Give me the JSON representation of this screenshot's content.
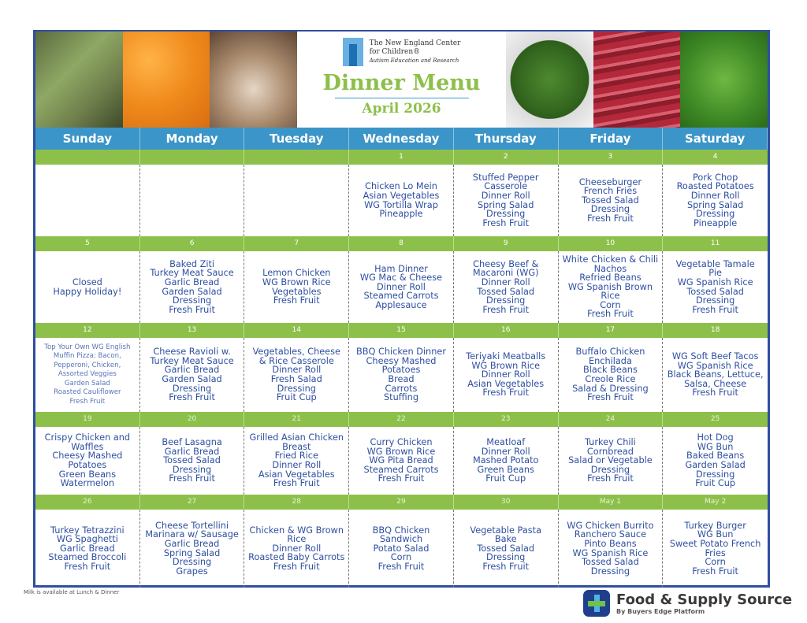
{
  "header": {
    "org_line1": "The New England Center",
    "org_line2": "for Children®",
    "org_tagline": "Autism Education and Research",
    "title": "Dinner Menu",
    "month": "April 2026"
  },
  "days": [
    "Sunday",
    "Monday",
    "Tuesday",
    "Wednesday",
    "Thursday",
    "Friday",
    "Saturday"
  ],
  "weeks": [
    [
      {
        "num": "",
        "items": []
      },
      {
        "num": "",
        "items": []
      },
      {
        "num": "",
        "items": []
      },
      {
        "num": "1",
        "items": [
          "Chicken Lo Mein",
          "Asian Vegetables",
          "WG Tortilla Wrap",
          "Pineapple"
        ]
      },
      {
        "num": "2",
        "items": [
          "Stuffed Pepper",
          "Casserole",
          "Dinner Roll",
          "Spring Salad",
          "Dressing",
          "Fresh Fruit"
        ]
      },
      {
        "num": "3",
        "items": [
          "Cheeseburger",
          "French Fries",
          "Tossed Salad",
          "Dressing",
          "Fresh Fruit"
        ]
      },
      {
        "num": "4",
        "items": [
          "Pork Chop",
          "Roasted Potatoes",
          "Dinner Roll",
          "Spring Salad",
          "Dressing",
          "Pineapple"
        ]
      }
    ],
    [
      {
        "num": "5",
        "items": [
          "Closed",
          "Happy Holiday!"
        ]
      },
      {
        "num": "6",
        "items": [
          "Baked Ziti",
          "Turkey Meat Sauce",
          "Garlic Bread",
          "Garden Salad",
          "Dressing",
          "Fresh Fruit"
        ]
      },
      {
        "num": "7",
        "items": [
          "Lemon Chicken",
          "WG Brown Rice",
          "Vegetables",
          "Fresh Fruit"
        ]
      },
      {
        "num": "8",
        "items": [
          "Ham Dinner",
          "WG Mac & Cheese",
          "Dinner Roll",
          "Steamed Carrots",
          "Applesauce"
        ]
      },
      {
        "num": "9",
        "items": [
          "Cheesy Beef &",
          "Macaroni (WG)",
          "Dinner Roll",
          "Tossed Salad",
          "Dressing",
          "Fresh Fruit"
        ]
      },
      {
        "num": "10",
        "items": [
          "White Chicken & Chili",
          "Nachos",
          "Refried Beans",
          "WG Spanish Brown",
          "Rice",
          "Corn",
          "Fresh Fruit"
        ]
      },
      {
        "num": "11",
        "items": [
          "Vegetable Tamale",
          "Pie",
          "WG Spanish Rice",
          "Tossed Salad",
          "Dressing",
          "Fresh Fruit"
        ]
      }
    ],
    [
      {
        "num": "12",
        "small": true,
        "items": [
          "Top Your Own WG English",
          "Muffin Pizza: Bacon,",
          "Pepperoni, Chicken,",
          "Assorted Veggies",
          "Garden Salad",
          "Roasted Cauliflower",
          "Fresh Fruit"
        ]
      },
      {
        "num": "13",
        "items": [
          "Cheese Ravioli w.",
          "Turkey Meat Sauce",
          "Garlic Bread",
          "Garden Salad",
          "Dressing",
          "Fresh Fruit"
        ]
      },
      {
        "num": "14",
        "items": [
          "Vegetables, Cheese",
          "& Rice Casserole",
          "Dinner Roll",
          "Fresh Salad",
          "Dressing",
          "Fruit Cup"
        ]
      },
      {
        "num": "15",
        "items": [
          "BBQ Chicken Dinner",
          "Cheesy Mashed",
          "Potatoes",
          "Bread",
          "Carrots",
          "Stuffing"
        ]
      },
      {
        "num": "16",
        "items": [
          "Teriyaki Meatballs",
          "WG Brown Rice",
          "Dinner Roll",
          "Asian Vegetables",
          "Fresh Fruit"
        ]
      },
      {
        "num": "17",
        "items": [
          "Buffalo Chicken",
          "Enchilada",
          "Black Beans",
          "Creole Rice",
          "Salad & Dressing",
          "Fresh Fruit"
        ]
      },
      {
        "num": "18",
        "items": [
          "WG Soft Beef Tacos",
          "WG Spanish Rice",
          "Black Beans, Lettuce,",
          "Salsa, Cheese",
          "Fresh Fruit"
        ]
      }
    ],
    [
      {
        "num": "19",
        "items": [
          "Crispy Chicken and",
          "Waffles",
          "Cheesy Mashed",
          "Potatoes",
          "Green Beans",
          "Watermelon"
        ]
      },
      {
        "num": "20",
        "items": [
          "Beef Lasagna",
          "Garlic Bread",
          "Tossed Salad",
          "Dressing",
          "Fresh Fruit"
        ]
      },
      {
        "num": "21",
        "items": [
          "Grilled Asian Chicken",
          "Breast",
          "Fried Rice",
          "Dinner Roll",
          "Asian Vegetables",
          "Fresh Fruit"
        ]
      },
      {
        "num": "22",
        "items": [
          "Curry Chicken",
          "WG Brown Rice",
          "WG Pita Bread",
          "Steamed Carrots",
          "Fresh Fruit"
        ]
      },
      {
        "num": "23",
        "items": [
          "Meatloaf",
          "Dinner Roll",
          "Mashed Potato",
          "Green Beans",
          "Fruit Cup"
        ]
      },
      {
        "num": "24",
        "items": [
          "Turkey Chili",
          "Cornbread",
          "Salad or Vegetable",
          "Dressing",
          "Fresh Fruit"
        ]
      },
      {
        "num": "25",
        "items": [
          "Hot Dog",
          "WG Bun",
          "Baked Beans",
          "Garden Salad",
          "Dressing",
          "Fruit Cup"
        ]
      }
    ],
    [
      {
        "num": "26",
        "items": [
          "Turkey Tetrazzini",
          "WG Spaghetti",
          "Garlic Bread",
          "Steamed Broccoli",
          "Fresh Fruit"
        ]
      },
      {
        "num": "27",
        "items": [
          "Cheese Tortellini",
          "Marinara w/ Sausage",
          "Garlic Bread",
          "Spring Salad",
          "Dressing",
          "Grapes"
        ]
      },
      {
        "num": "28",
        "items": [
          "Chicken & WG Brown",
          "Rice",
          "Dinner Roll",
          "Roasted Baby Carrots",
          "Fresh Fruit"
        ]
      },
      {
        "num": "29",
        "items": [
          "BBQ Chicken",
          "Sandwich",
          "Potato Salad",
          "Corn",
          "Fresh Fruit"
        ]
      },
      {
        "num": "30",
        "items": [
          "Vegetable Pasta",
          "Bake",
          "Tossed Salad",
          "Dressing",
          "Fresh Fruit"
        ]
      },
      {
        "num": "May 1",
        "items": [
          "WG Chicken Burrito",
          "Ranchero Sauce",
          "Pinto Beans",
          "WG Spanish Rice",
          "Tossed Salad",
          "Dressing"
        ]
      },
      {
        "num": "May 2",
        "items": [
          "Turkey Burger",
          "WG Bun",
          "Sweet Potato French",
          "Fries",
          "Corn",
          "Fresh Fruit"
        ]
      }
    ]
  ],
  "footer": {
    "note": "Milk is available at Lunch & Dinner",
    "brand_name": "Food & Supply Source",
    "brand_sub": "By Buyers Edge Platform"
  },
  "colors": {
    "blue_header": "#3b95c8",
    "green_bar": "#8dc04a",
    "text": "#2e4fa0"
  }
}
